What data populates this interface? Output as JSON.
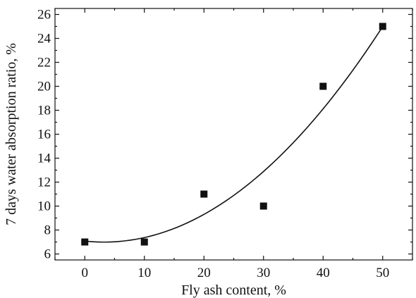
{
  "chart_data": {
    "type": "scatter",
    "title": "",
    "xlabel": "Fly ash content,  %",
    "ylabel": "7 days water absorption ratio, %",
    "xlim": [
      -5,
      55
    ],
    "ylim": [
      5.5,
      26.5
    ],
    "x_ticks": [
      0,
      10,
      20,
      30,
      40,
      50
    ],
    "y_ticks": [
      6,
      8,
      10,
      12,
      14,
      16,
      18,
      20,
      22,
      24,
      26
    ],
    "grid": false,
    "legend": "none",
    "series": [
      {
        "marker": "square",
        "x": [
          0,
          10,
          20,
          30,
          40,
          50
        ],
        "y": [
          7,
          7,
          11,
          10,
          20,
          25
        ]
      }
    ],
    "fit_curve": {
      "type": "quadratic",
      "x_range": [
        0,
        50
      ],
      "points": [
        [
          0,
          7.1
        ],
        [
          4,
          6.95
        ],
        [
          10,
          7.4
        ],
        [
          20,
          9.3
        ],
        [
          30,
          12.9
        ],
        [
          40,
          18.1
        ],
        [
          50,
          25.0
        ]
      ]
    }
  }
}
